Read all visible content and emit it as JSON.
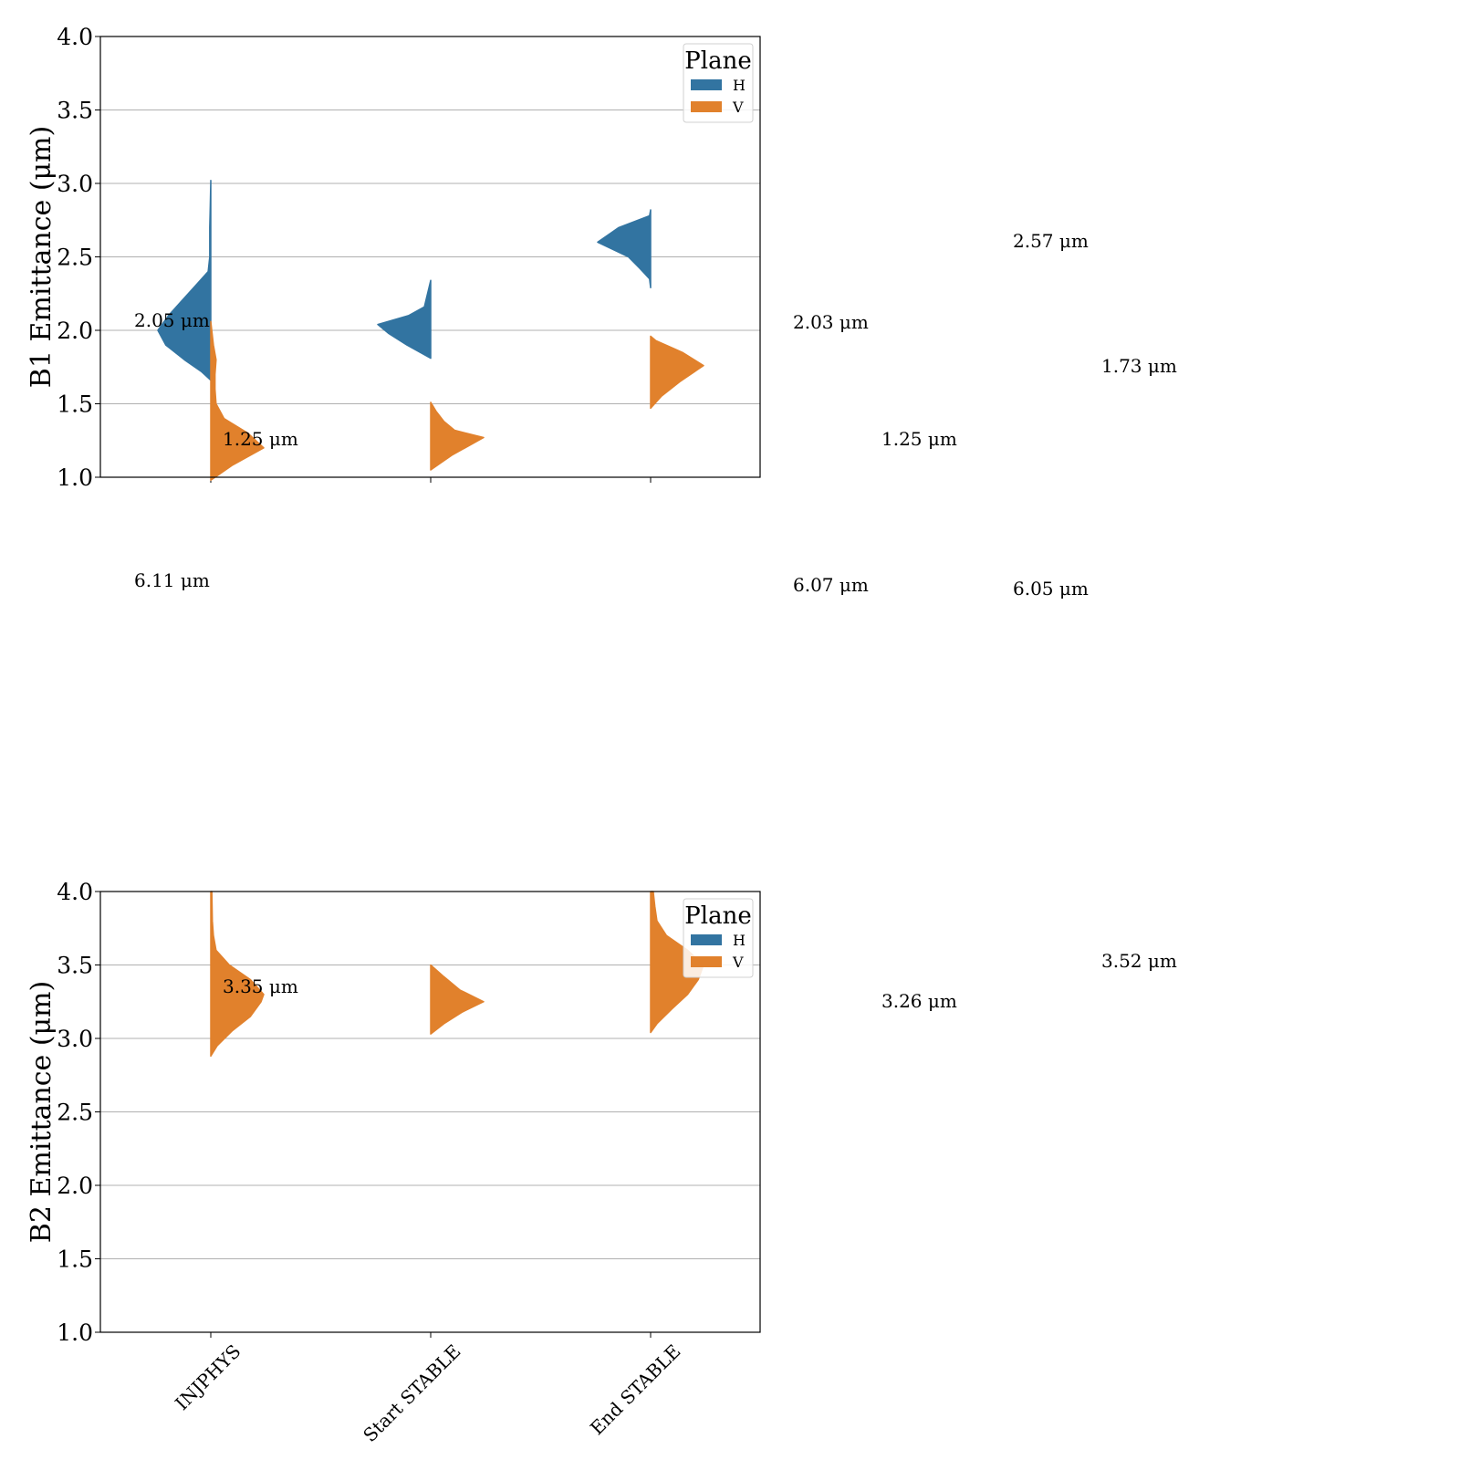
{
  "chart_data": [
    {
      "type": "violin",
      "ylabel": "B1 Emittance (μm)",
      "ylim": [
        1.0,
        4.0
      ],
      "yticks": [
        "1.0",
        "1.5",
        "2.0",
        "2.5",
        "3.0",
        "3.5",
        "4.0"
      ],
      "grid": true,
      "categories": [
        "INJPHYS",
        "Start STABLE",
        "End STABLE"
      ],
      "legend": {
        "title": "Plane",
        "placement": "top-right",
        "entries": [
          "H",
          "V"
        ]
      },
      "series": [
        {
          "name": "H",
          "side": "left",
          "color": "#3274a1",
          "distributions": [
            {
              "min": 1.66,
              "max": 3.02,
              "mode": 2.0,
              "points": [
                [
                  1.66,
                  0.0
                ],
                [
                  1.72,
                  0.18
                ],
                [
                  1.8,
                  0.5
                ],
                [
                  1.9,
                  0.85
                ],
                [
                  2.0,
                  1.0
                ],
                [
                  2.1,
                  0.8
                ],
                [
                  2.2,
                  0.55
                ],
                [
                  2.3,
                  0.3
                ],
                [
                  2.4,
                  0.05
                ],
                [
                  2.5,
                  0.02
                ],
                [
                  2.6,
                  0.02
                ],
                [
                  2.7,
                  0.02
                ],
                [
                  2.85,
                  0.01
                ],
                [
                  3.02,
                  0.0
                ]
              ]
            },
            {
              "min": 1.81,
              "max": 2.34,
              "mode": 2.04,
              "points": [
                [
                  1.81,
                  0.0
                ],
                [
                  1.9,
                  0.45
                ],
                [
                  1.98,
                  0.8
                ],
                [
                  2.04,
                  1.0
                ],
                [
                  2.1,
                  0.42
                ],
                [
                  2.16,
                  0.12
                ],
                [
                  2.22,
                  0.08
                ],
                [
                  2.28,
                  0.04
                ],
                [
                  2.34,
                  0.0
                ]
              ]
            },
            {
              "min": 2.29,
              "max": 2.82,
              "mode": 2.6,
              "points": [
                [
                  2.29,
                  0.0
                ],
                [
                  2.35,
                  0.02
                ],
                [
                  2.42,
                  0.2
                ],
                [
                  2.5,
                  0.42
                ],
                [
                  2.6,
                  1.0
                ],
                [
                  2.7,
                  0.6
                ],
                [
                  2.78,
                  0.02
                ],
                [
                  2.82,
                  0.0
                ]
              ]
            }
          ]
        },
        {
          "name": "V",
          "side": "right",
          "color": "#e1812c",
          "distributions": [
            {
              "min": 0.98,
              "max": 2.06,
              "mode": 1.2,
              "points": [
                [
                  0.98,
                  0.0
                ],
                [
                  1.08,
                  0.4
                ],
                [
                  1.2,
                  1.0
                ],
                [
                  1.3,
                  0.7
                ],
                [
                  1.4,
                  0.25
                ],
                [
                  1.5,
                  0.1
                ],
                [
                  1.6,
                  0.08
                ],
                [
                  1.7,
                  0.08
                ],
                [
                  1.8,
                  0.1
                ],
                [
                  1.9,
                  0.05
                ],
                [
                  2.06,
                  0.0
                ]
              ]
            },
            {
              "min": 1.05,
              "max": 1.51,
              "mode": 1.27,
              "points": [
                [
                  1.05,
                  0.0
                ],
                [
                  1.15,
                  0.4
                ],
                [
                  1.22,
                  0.75
                ],
                [
                  1.27,
                  1.0
                ],
                [
                  1.32,
                  0.45
                ],
                [
                  1.38,
                  0.25
                ],
                [
                  1.45,
                  0.1
                ],
                [
                  1.51,
                  0.0
                ]
              ]
            },
            {
              "min": 1.47,
              "max": 1.96,
              "mode": 1.76,
              "points": [
                [
                  1.47,
                  0.0
                ],
                [
                  1.55,
                  0.2
                ],
                [
                  1.65,
                  0.55
                ],
                [
                  1.76,
                  1.0
                ],
                [
                  1.85,
                  0.6
                ],
                [
                  1.93,
                  0.1
                ],
                [
                  1.96,
                  0.0
                ]
              ]
            }
          ]
        }
      ],
      "annotations": [
        {
          "text": "2.05 μm",
          "value": 2.05,
          "category": 0
        },
        {
          "text": "1.25 μm",
          "value": 1.25,
          "category": 0
        },
        {
          "text": "6.11 μm",
          "value": 6.11,
          "category": 0
        },
        {
          "text": "2.03 μm",
          "value": 2.03,
          "category": 1
        },
        {
          "text": "1.25 μm",
          "value": 1.25,
          "category": 1
        },
        {
          "text": "6.07 μm",
          "value": 6.07,
          "category": 1
        },
        {
          "text": "2.57 μm",
          "value": 2.57,
          "category": 2
        },
        {
          "text": "1.73 μm",
          "value": 1.73,
          "category": 2
        },
        {
          "text": "6.05 μm",
          "value": 6.05,
          "category": 2
        }
      ]
    },
    {
      "type": "violin",
      "ylabel": "B2 Emittance (μm)",
      "ylim": [
        1.0,
        4.0
      ],
      "yticks": [
        "1.0",
        "1.5",
        "2.0",
        "2.5",
        "3.0",
        "3.5",
        "4.0"
      ],
      "grid": true,
      "categories": [
        "INJPHYS",
        "Start STABLE",
        "End STABLE"
      ],
      "legend": {
        "title": "Plane",
        "placement": "top-right",
        "entries": [
          "H",
          "V"
        ]
      },
      "series": [
        {
          "name": "H",
          "side": "left",
          "color": "#3274a1",
          "distributions": []
        },
        {
          "name": "V",
          "side": "right",
          "color": "#e1812c",
          "distributions": [
            {
              "min": 2.88,
              "max": 4.0,
              "mode": 3.3,
              "points": [
                [
                  2.88,
                  0.0
                ],
                [
                  2.95,
                  0.12
                ],
                [
                  3.05,
                  0.4
                ],
                [
                  3.15,
                  0.75
                ],
                [
                  3.25,
                  0.95
                ],
                [
                  3.3,
                  1.0
                ],
                [
                  3.4,
                  0.75
                ],
                [
                  3.5,
                  0.35
                ],
                [
                  3.6,
                  0.1
                ],
                [
                  3.7,
                  0.05
                ],
                [
                  3.8,
                  0.03
                ],
                [
                  4.0,
                  0.02
                ]
              ]
            },
            {
              "min": 3.03,
              "max": 3.5,
              "mode": 3.25,
              "points": [
                [
                  3.03,
                  0.0
                ],
                [
                  3.1,
                  0.25
                ],
                [
                  3.18,
                  0.6
                ],
                [
                  3.25,
                  1.0
                ],
                [
                  3.33,
                  0.55
                ],
                [
                  3.42,
                  0.25
                ],
                [
                  3.5,
                  0.0
                ]
              ]
            },
            {
              "min": 3.04,
              "max": 4.0,
              "mode": 3.5,
              "points": [
                [
                  3.04,
                  0.0
                ],
                [
                  3.1,
                  0.12
                ],
                [
                  3.2,
                  0.4
                ],
                [
                  3.3,
                  0.7
                ],
                [
                  3.4,
                  0.9
                ],
                [
                  3.5,
                  1.0
                ],
                [
                  3.6,
                  0.7
                ],
                [
                  3.7,
                  0.3
                ],
                [
                  3.8,
                  0.12
                ],
                [
                  3.9,
                  0.08
                ],
                [
                  4.0,
                  0.05
                ]
              ]
            }
          ]
        }
      ],
      "annotations": [
        {
          "text": "3.35 μm",
          "value": 3.35,
          "category": 0
        },
        {
          "text": "3.26 μm",
          "value": 3.26,
          "category": 1
        },
        {
          "text": "3.52 μm",
          "value": 3.52,
          "category": 2
        }
      ]
    }
  ],
  "colors": {
    "H": "#3274a1",
    "V": "#e1812c",
    "grid": "#b0b0b0",
    "axis": "#000000"
  }
}
